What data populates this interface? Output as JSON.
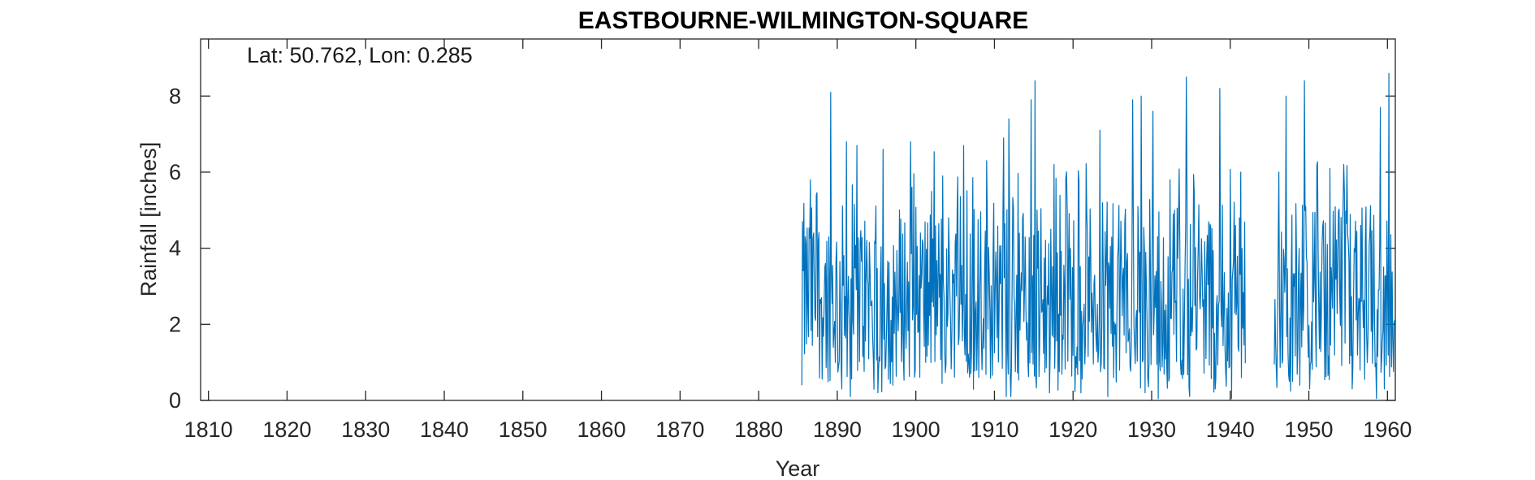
{
  "chart_data": {
    "type": "line",
    "title": "EASTBOURNE-WILMINGTON-SQUARE",
    "annotation": "Lat: 50.762, Lon: 0.285",
    "xlabel": "Year",
    "ylabel": "Rainfall [inches]",
    "xlim": [
      1809,
      1961
    ],
    "ylim": [
      0,
      9.5
    ],
    "xticks": [
      1810,
      1820,
      1830,
      1840,
      1850,
      1860,
      1870,
      1880,
      1890,
      1900,
      1910,
      1920,
      1930,
      1940,
      1950,
      1960
    ],
    "yticks": [
      0,
      2,
      4,
      6,
      8
    ],
    "grid": false,
    "series_color": "#0072BD",
    "series": [
      {
        "segments": [
          {
            "start_year": 1885.5,
            "end_year": 1941.9,
            "description": "monthly rainfall, values range ~0.05 to ~8.5 inches, peaks ~8.1 (1889), ~7.4 (1911), ~8.4 (1915), ~7.9 (1928), ~8.5 (1934), ~8.2 (1939)"
          },
          {
            "start_year": 1945.6,
            "end_year": 1960.9,
            "description": "monthly rainfall, values range ~0.05 to ~8.6 inches, peaks ~8.0 (1947), ~8.4 (1949), ~7.7 (1959), ~8.6 (1960)"
          }
        ],
        "peaks": [
          [
            1885.6,
            4.7
          ],
          [
            1886.6,
            5.8
          ],
          [
            1889.2,
            8.1
          ],
          [
            1891.2,
            6.8
          ],
          [
            1892.5,
            6.7
          ],
          [
            1895.8,
            6.6
          ],
          [
            1899.3,
            6.8
          ],
          [
            1903.4,
            5.9
          ],
          [
            1906.1,
            6.7
          ],
          [
            1909.0,
            6.3
          ],
          [
            1911.2,
            6.9
          ],
          [
            1911.8,
            7.4
          ],
          [
            1914.7,
            7.9
          ],
          [
            1915.2,
            8.4
          ],
          [
            1917.6,
            6.2
          ],
          [
            1923.4,
            7.1
          ],
          [
            1927.6,
            7.9
          ],
          [
            1928.7,
            8.0
          ],
          [
            1930.2,
            7.6
          ],
          [
            1934.4,
            8.5
          ],
          [
            1938.7,
            8.2
          ],
          [
            1941.2,
            4.8
          ],
          [
            1946.2,
            6.0
          ],
          [
            1947.1,
            8.0
          ],
          [
            1949.4,
            8.4
          ],
          [
            1952.7,
            6.1
          ],
          [
            1954.4,
            6.2
          ],
          [
            1959.1,
            7.7
          ],
          [
            1960.2,
            8.6
          ]
        ],
        "troughs": [
          [
            1885.5,
            0.4
          ],
          [
            1890.6,
            0.3
          ],
          [
            1891.7,
            0.1
          ],
          [
            1895.2,
            0.2
          ],
          [
            1911.5,
            0.1
          ],
          [
            1912.1,
            0.1
          ],
          [
            1917.0,
            0.2
          ],
          [
            1921.0,
            0.2
          ],
          [
            1924.4,
            0.1
          ],
          [
            1929.2,
            0.2
          ],
          [
            1930.8,
            0.05
          ],
          [
            1934.8,
            0.1
          ],
          [
            1938.1,
            0.3
          ],
          [
            1940.2,
            0.05
          ],
          [
            1941.4,
            0.6
          ],
          [
            1947.5,
            0.5
          ],
          [
            1950.1,
            0.3
          ],
          [
            1955.5,
            0.3
          ],
          [
            1958.6,
            0.05
          ],
          [
            1959.6,
            0.3
          ]
        ]
      }
    ]
  }
}
